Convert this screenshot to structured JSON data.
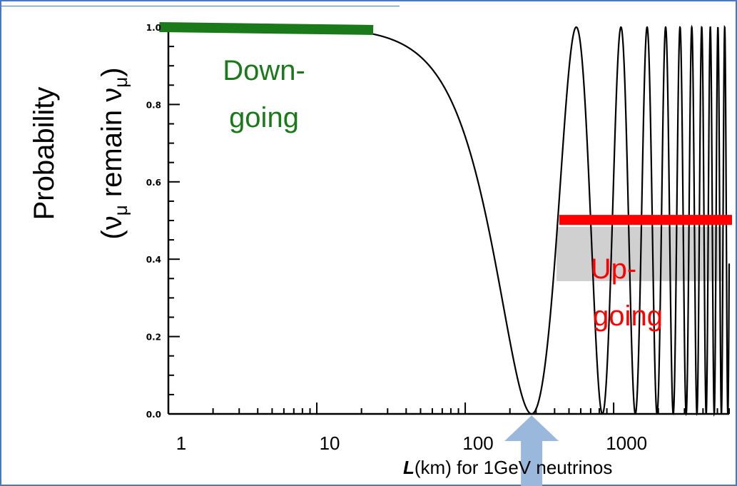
{
  "chart_data": {
    "type": "line",
    "x_scale": "log",
    "xlim": [
      1,
      6000
    ],
    "ylim": [
      0,
      1.0
    ],
    "x_tick_labels": [
      "1",
      "10",
      "100",
      "1000"
    ],
    "x_ticks": [
      1,
      10,
      100,
      1000
    ],
    "y_tick_labels": [
      "0.0",
      "0.2",
      "0.4",
      "0.6",
      "0.8",
      "1.0"
    ],
    "y_ticks": [
      0.0,
      0.2,
      0.4,
      0.6,
      0.8,
      1.0
    ],
    "ylabel_line1": "Probability",
    "ylabel_line2": "(ν",
    "ylabel_line2_sub": "μ",
    "ylabel_line2_mid": " remain ν",
    "ylabel_line2_sub2": "μ",
    "ylabel_line2_end": ")",
    "xlabel_bold": "L",
    "xlabel_rest": "(km) for 1GeV neutrinos",
    "curve": {
      "formula": "P = 1 - sin^2(pi * L / L_osc)",
      "first_minimum_L_km": 280,
      "first_minimum_value": 0.0,
      "max_value": 1.0
    },
    "annotations": [
      {
        "name": "down-going",
        "text_line1": "Down-",
        "text_line2": "going",
        "color": "#1a7a1a",
        "bar_x_range": [
          0.87,
          24
        ],
        "bar_y": 1.0
      },
      {
        "name": "up-going",
        "text_line1": "Up-",
        "text_line2": "going",
        "color": "#ff0000",
        "bar_x_range": [
          430,
          6000
        ],
        "bar_y": 0.52
      }
    ],
    "arrow": {
      "color": "#9ab8dc",
      "points_to_L_km": 280
    },
    "grid": false
  }
}
